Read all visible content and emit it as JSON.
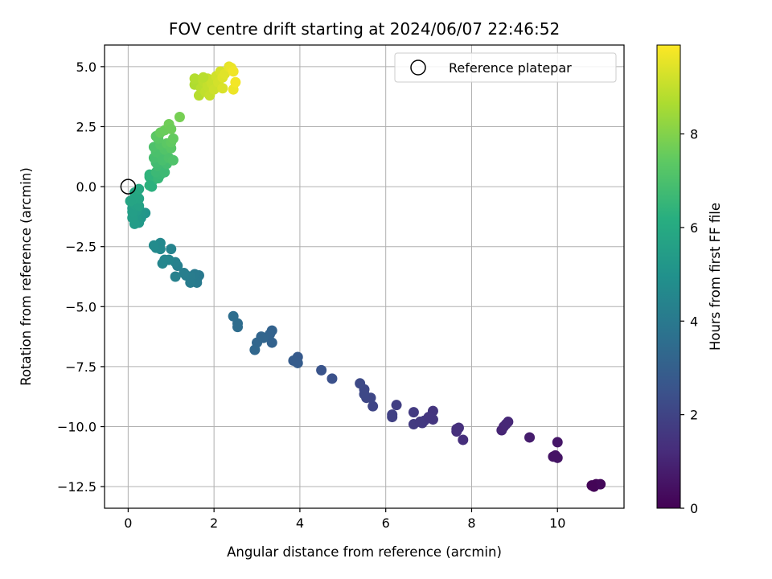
{
  "chart_data": {
    "type": "scatter",
    "title": "FOV centre drift starting at 2024/06/07 22:46:52",
    "xlabel": "Angular distance from reference (arcmin)",
    "ylabel": "Rotation from reference (arcmin)",
    "xlim": [
      -0.55,
      11.55
    ],
    "ylim": [
      -13.4,
      5.9
    ],
    "xticks": [
      0,
      2,
      4,
      6,
      8,
      10
    ],
    "xtick_labels": [
      "0",
      "2",
      "4",
      "6",
      "8",
      "10"
    ],
    "yticks": [
      5.0,
      2.5,
      0.0,
      -2.5,
      -5.0,
      -7.5,
      -10.0,
      -12.5
    ],
    "ytick_labels": [
      "5.0",
      "2.5",
      "0.0",
      "−2.5",
      "−5.0",
      "−7.5",
      "−10.0",
      "−12.5"
    ],
    "grid": true,
    "legend": {
      "position": "top-right",
      "entries": [
        "Reference platepar"
      ]
    },
    "reference_point": {
      "x": 0.0,
      "y": 0.0
    },
    "colorbar": {
      "label": "Hours from first FF file",
      "colormap": "viridis",
      "range": [
        0,
        9.9
      ],
      "ticks": [
        0,
        2,
        4,
        6,
        8
      ],
      "tick_labels": [
        "0",
        "2",
        "4",
        "6",
        "8"
      ]
    },
    "points": [
      {
        "x": 10.85,
        "y": -12.5,
        "t": 0.1
      },
      {
        "x": 10.9,
        "y": -12.4,
        "t": 0.15
      },
      {
        "x": 11.0,
        "y": -12.4,
        "t": 0.2
      },
      {
        "x": 10.8,
        "y": -12.45,
        "t": 0.1
      },
      {
        "x": 9.9,
        "y": -11.25,
        "t": 0.5
      },
      {
        "x": 10.0,
        "y": -11.3,
        "t": 0.55
      },
      {
        "x": 9.95,
        "y": -11.2,
        "t": 0.5
      },
      {
        "x": 10.0,
        "y": -10.65,
        "t": 0.6
      },
      {
        "x": 9.35,
        "y": -10.45,
        "t": 0.8
      },
      {
        "x": 8.7,
        "y": -10.15,
        "t": 1.0
      },
      {
        "x": 8.75,
        "y": -10.0,
        "t": 1.05
      },
      {
        "x": 8.8,
        "y": -9.9,
        "t": 1.1
      },
      {
        "x": 8.85,
        "y": -9.8,
        "t": 1.1
      },
      {
        "x": 7.65,
        "y": -10.2,
        "t": 1.3
      },
      {
        "x": 7.7,
        "y": -10.05,
        "t": 1.35
      },
      {
        "x": 7.8,
        "y": -10.55,
        "t": 1.3
      },
      {
        "x": 7.65,
        "y": -10.1,
        "t": 1.35
      },
      {
        "x": 7.1,
        "y": -9.35,
        "t": 1.5
      },
      {
        "x": 7.1,
        "y": -9.7,
        "t": 1.55
      },
      {
        "x": 6.9,
        "y": -9.75,
        "t": 1.6
      },
      {
        "x": 6.85,
        "y": -9.85,
        "t": 1.6
      },
      {
        "x": 6.65,
        "y": -9.4,
        "t": 1.7
      },
      {
        "x": 6.65,
        "y": -9.9,
        "t": 1.7
      },
      {
        "x": 6.8,
        "y": -9.8,
        "t": 1.65
      },
      {
        "x": 7.0,
        "y": -9.6,
        "t": 1.55
      },
      {
        "x": 6.25,
        "y": -9.1,
        "t": 1.85
      },
      {
        "x": 6.15,
        "y": -9.5,
        "t": 1.9
      },
      {
        "x": 6.15,
        "y": -9.6,
        "t": 1.9
      },
      {
        "x": 5.7,
        "y": -9.15,
        "t": 2.05
      },
      {
        "x": 5.65,
        "y": -8.8,
        "t": 2.1
      },
      {
        "x": 5.55,
        "y": -8.8,
        "t": 2.1
      },
      {
        "x": 5.5,
        "y": -8.65,
        "t": 2.15
      },
      {
        "x": 5.5,
        "y": -8.45,
        "t": 2.15
      },
      {
        "x": 5.4,
        "y": -8.2,
        "t": 2.2
      },
      {
        "x": 4.75,
        "y": -8.0,
        "t": 2.45
      },
      {
        "x": 4.5,
        "y": -7.65,
        "t": 2.55
      },
      {
        "x": 3.95,
        "y": -7.1,
        "t": 2.8
      },
      {
        "x": 3.95,
        "y": -7.35,
        "t": 2.85
      },
      {
        "x": 3.85,
        "y": -7.25,
        "t": 2.85
      },
      {
        "x": 3.35,
        "y": -6.0,
        "t": 3.1
      },
      {
        "x": 3.35,
        "y": -6.5,
        "t": 3.1
      },
      {
        "x": 3.3,
        "y": -6.15,
        "t": 3.15
      },
      {
        "x": 3.15,
        "y": -6.3,
        "t": 3.2
      },
      {
        "x": 3.1,
        "y": -6.25,
        "t": 3.2
      },
      {
        "x": 3.0,
        "y": -6.5,
        "t": 3.25
      },
      {
        "x": 2.95,
        "y": -6.8,
        "t": 3.3
      },
      {
        "x": 2.55,
        "y": -5.85,
        "t": 3.5
      },
      {
        "x": 2.55,
        "y": -5.7,
        "t": 3.5
      },
      {
        "x": 2.45,
        "y": -5.4,
        "t": 3.55
      },
      {
        "x": 1.65,
        "y": -3.7,
        "t": 4.0
      },
      {
        "x": 1.6,
        "y": -3.85,
        "t": 4.0
      },
      {
        "x": 1.6,
        "y": -4.0,
        "t": 4.05
      },
      {
        "x": 1.55,
        "y": -3.65,
        "t": 4.05
      },
      {
        "x": 1.45,
        "y": -3.75,
        "t": 4.1
      },
      {
        "x": 1.45,
        "y": -4.0,
        "t": 4.1
      },
      {
        "x": 1.35,
        "y": -3.7,
        "t": 4.15
      },
      {
        "x": 1.3,
        "y": -3.6,
        "t": 4.2
      },
      {
        "x": 1.15,
        "y": -3.3,
        "t": 4.25
      },
      {
        "x": 1.1,
        "y": -3.15,
        "t": 4.3
      },
      {
        "x": 1.1,
        "y": -3.75,
        "t": 4.3
      },
      {
        "x": 1.0,
        "y": -2.6,
        "t": 4.4
      },
      {
        "x": 0.95,
        "y": -3.05,
        "t": 4.45
      },
      {
        "x": 0.85,
        "y": -3.05,
        "t": 4.5
      },
      {
        "x": 0.8,
        "y": -3.2,
        "t": 4.5
      },
      {
        "x": 0.75,
        "y": -2.35,
        "t": 4.6
      },
      {
        "x": 0.75,
        "y": -2.6,
        "t": 4.6
      },
      {
        "x": 0.65,
        "y": -2.55,
        "t": 4.65
      },
      {
        "x": 0.6,
        "y": -2.45,
        "t": 4.7
      },
      {
        "x": 0.4,
        "y": -1.1,
        "t": 5.1
      },
      {
        "x": 0.3,
        "y": -1.3,
        "t": 5.2
      },
      {
        "x": 0.3,
        "y": -1.05,
        "t": 5.25
      },
      {
        "x": 0.25,
        "y": -1.5,
        "t": 5.3
      },
      {
        "x": 0.2,
        "y": -1.35,
        "t": 5.35
      },
      {
        "x": 0.2,
        "y": -1.0,
        "t": 5.4
      },
      {
        "x": 0.15,
        "y": -1.55,
        "t": 5.4
      },
      {
        "x": 0.1,
        "y": -1.3,
        "t": 5.45
      },
      {
        "x": 0.1,
        "y": -1.05,
        "t": 5.5
      },
      {
        "x": 0.1,
        "y": -0.9,
        "t": 5.5
      },
      {
        "x": 0.15,
        "y": -0.75,
        "t": 5.6
      },
      {
        "x": 0.2,
        "y": -0.6,
        "t": 5.65
      },
      {
        "x": 0.25,
        "y": -0.8,
        "t": 5.65
      },
      {
        "x": 0.25,
        "y": -0.5,
        "t": 5.75
      },
      {
        "x": 0.2,
        "y": -0.35,
        "t": 5.8
      },
      {
        "x": 0.15,
        "y": -0.25,
        "t": 5.85
      },
      {
        "x": 0.1,
        "y": -0.55,
        "t": 5.8
      },
      {
        "x": 0.05,
        "y": -0.6,
        "t": 5.75
      },
      {
        "x": 0.25,
        "y": -0.1,
        "t": 5.95
      },
      {
        "x": 0.55,
        "y": 0.0,
        "t": 6.25
      },
      {
        "x": 0.5,
        "y": 0.4,
        "t": 6.35
      },
      {
        "x": 0.55,
        "y": 0.45,
        "t": 6.4
      },
      {
        "x": 0.6,
        "y": 0.3,
        "t": 6.45
      },
      {
        "x": 0.5,
        "y": 0.5,
        "t": 6.4
      },
      {
        "x": 0.5,
        "y": 0.05,
        "t": 6.3
      },
      {
        "x": 0.7,
        "y": 0.35,
        "t": 6.55
      },
      {
        "x": 0.75,
        "y": 0.5,
        "t": 6.6
      },
      {
        "x": 0.65,
        "y": 0.6,
        "t": 6.65
      },
      {
        "x": 0.7,
        "y": 0.85,
        "t": 6.75
      },
      {
        "x": 0.85,
        "y": 0.6,
        "t": 6.7
      },
      {
        "x": 0.9,
        "y": 0.95,
        "t": 6.85
      },
      {
        "x": 0.65,
        "y": 1.0,
        "t": 6.8
      },
      {
        "x": 0.6,
        "y": 1.2,
        "t": 6.9
      },
      {
        "x": 0.65,
        "y": 1.45,
        "t": 7.0
      },
      {
        "x": 0.6,
        "y": 1.65,
        "t": 7.05
      },
      {
        "x": 0.75,
        "y": 1.35,
        "t": 7.0
      },
      {
        "x": 0.8,
        "y": 1.1,
        "t": 6.95
      },
      {
        "x": 0.95,
        "y": 1.2,
        "t": 7.05
      },
      {
        "x": 1.05,
        "y": 1.1,
        "t": 7.1
      },
      {
        "x": 0.85,
        "y": 1.55,
        "t": 7.15
      },
      {
        "x": 0.75,
        "y": 1.75,
        "t": 7.2
      },
      {
        "x": 0.7,
        "y": 2.0,
        "t": 7.3
      },
      {
        "x": 0.65,
        "y": 2.1,
        "t": 7.35
      },
      {
        "x": 0.9,
        "y": 1.8,
        "t": 7.35
      },
      {
        "x": 1.0,
        "y": 1.6,
        "t": 7.3
      },
      {
        "x": 1.0,
        "y": 1.85,
        "t": 7.45
      },
      {
        "x": 1.05,
        "y": 2.0,
        "t": 7.5
      },
      {
        "x": 0.75,
        "y": 2.25,
        "t": 7.55
      },
      {
        "x": 0.85,
        "y": 2.35,
        "t": 7.6
      },
      {
        "x": 0.95,
        "y": 2.6,
        "t": 7.7
      },
      {
        "x": 1.0,
        "y": 2.4,
        "t": 7.65
      },
      {
        "x": 1.2,
        "y": 2.9,
        "t": 7.8
      },
      {
        "x": 1.55,
        "y": 4.25,
        "t": 8.7
      },
      {
        "x": 1.55,
        "y": 4.5,
        "t": 8.75
      },
      {
        "x": 1.65,
        "y": 3.8,
        "t": 8.8
      },
      {
        "x": 1.7,
        "y": 4.1,
        "t": 8.85
      },
      {
        "x": 1.75,
        "y": 4.4,
        "t": 8.9
      },
      {
        "x": 1.8,
        "y": 3.95,
        "t": 8.95
      },
      {
        "x": 1.85,
        "y": 4.2,
        "t": 9.0
      },
      {
        "x": 1.85,
        "y": 4.5,
        "t": 9.05
      },
      {
        "x": 1.9,
        "y": 3.8,
        "t": 9.05
      },
      {
        "x": 1.95,
        "y": 4.3,
        "t": 9.1
      },
      {
        "x": 2.0,
        "y": 4.05,
        "t": 9.15
      },
      {
        "x": 2.05,
        "y": 4.6,
        "t": 9.2
      },
      {
        "x": 2.1,
        "y": 4.35,
        "t": 9.25
      },
      {
        "x": 2.15,
        "y": 4.8,
        "t": 9.3
      },
      {
        "x": 2.2,
        "y": 4.1,
        "t": 9.35
      },
      {
        "x": 2.2,
        "y": 4.55,
        "t": 9.4
      },
      {
        "x": 2.25,
        "y": 4.7,
        "t": 9.45
      },
      {
        "x": 2.35,
        "y": 5.0,
        "t": 9.55
      },
      {
        "x": 2.4,
        "y": 4.95,
        "t": 9.6
      },
      {
        "x": 2.45,
        "y": 4.05,
        "t": 9.65
      },
      {
        "x": 2.5,
        "y": 4.35,
        "t": 9.75
      },
      {
        "x": 2.45,
        "y": 4.8,
        "t": 9.7
      },
      {
        "x": 1.75,
        "y": 4.55,
        "t": 8.85
      }
    ]
  }
}
